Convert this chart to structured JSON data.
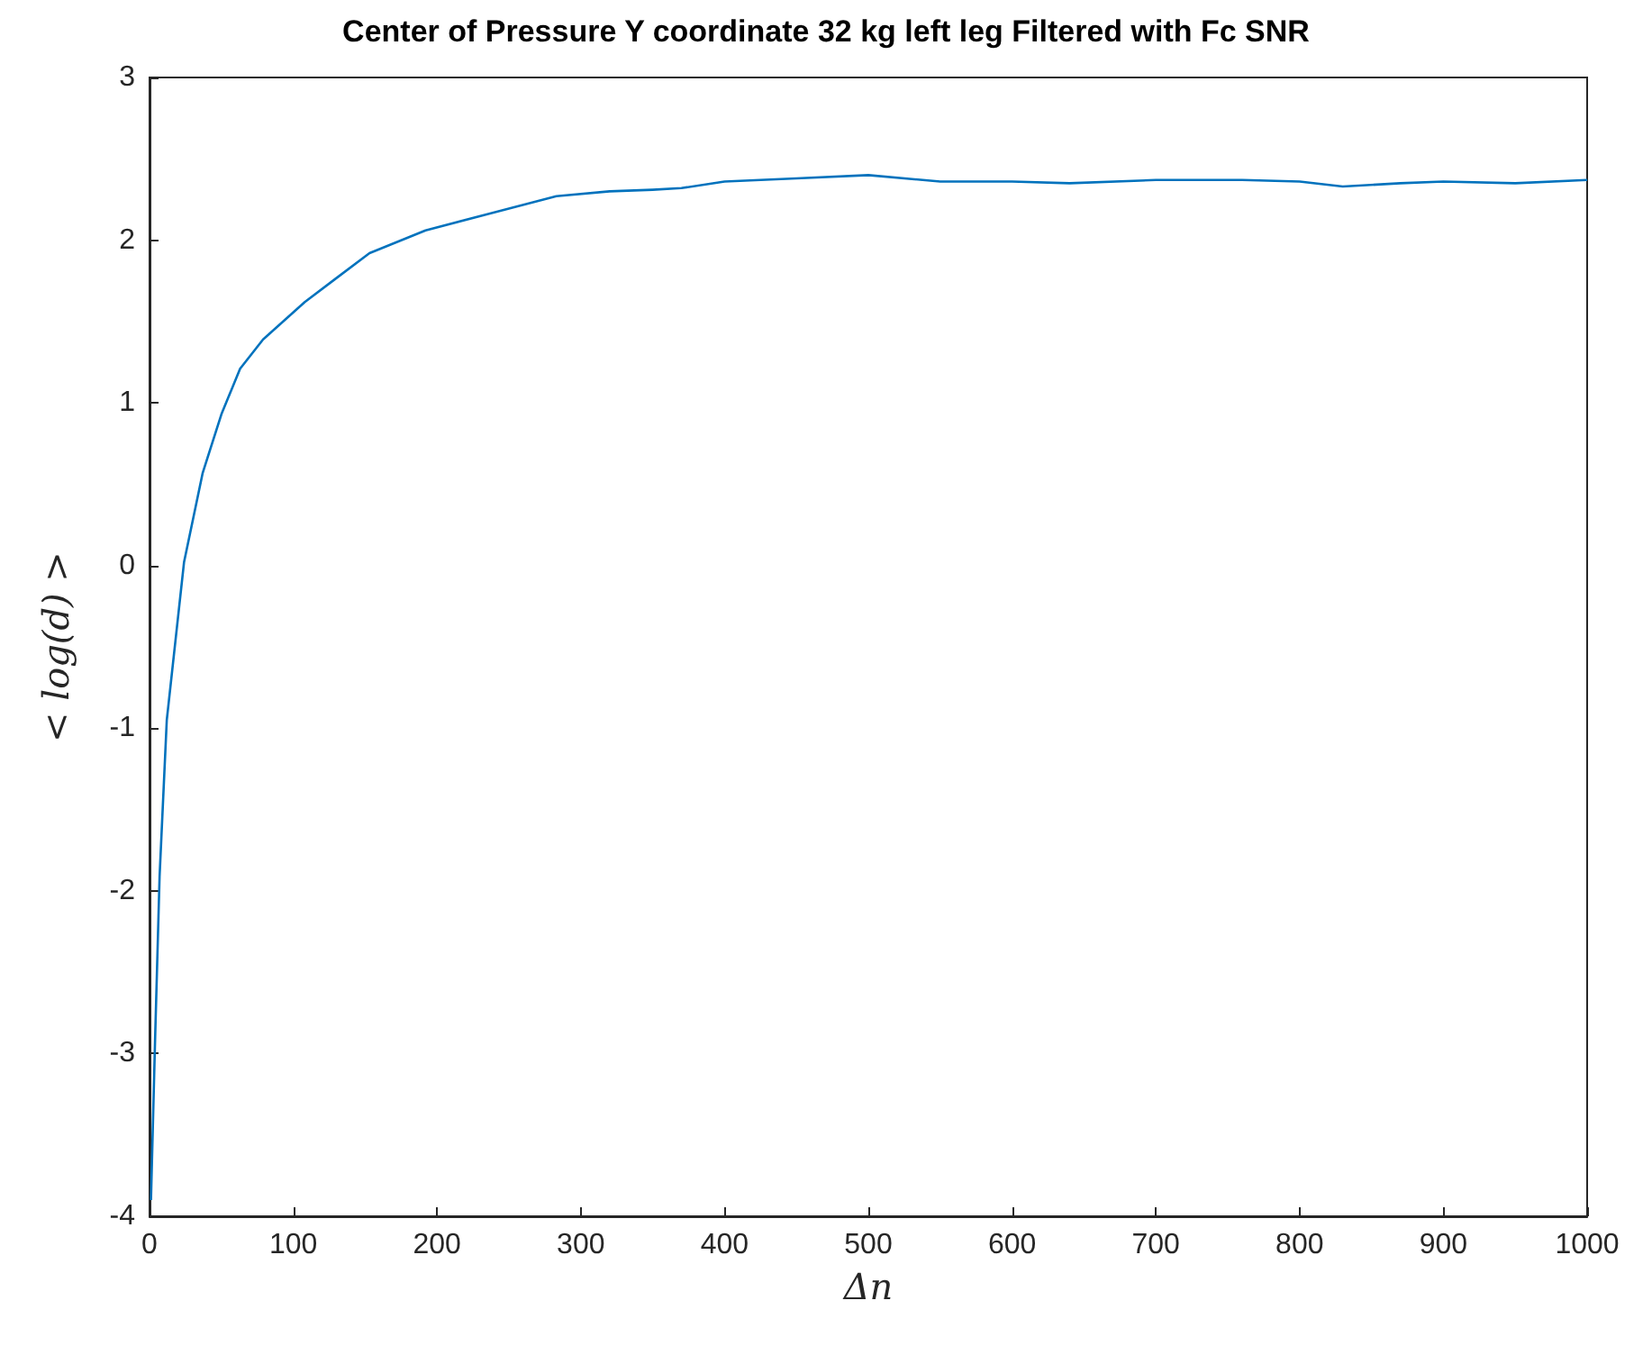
{
  "chart_data": {
    "type": "line",
    "title": "Center of Pressure Y coordinate 32 kg left leg Filtered with Fc SNR",
    "xlabel": "Δn",
    "ylabel": "< log(d) >",
    "x": [
      1,
      4,
      7,
      12,
      24,
      37,
      50,
      63,
      79,
      108,
      129,
      153,
      192,
      235,
      283,
      320,
      350,
      370,
      400,
      450,
      500,
      550,
      600,
      640,
      700,
      760,
      800,
      830,
      870,
      900,
      950,
      1000
    ],
    "series": [
      {
        "color": "#0072bd",
        "values": [
          -3.9,
          -2.87,
          -1.91,
          -0.95,
          0.02,
          0.57,
          0.93,
          1.21,
          1.39,
          1.62,
          1.76,
          1.92,
          2.06,
          2.16,
          2.27,
          2.3,
          2.31,
          2.32,
          2.36,
          2.38,
          2.4,
          2.36,
          2.36,
          2.35,
          2.37,
          2.37,
          2.36,
          2.33,
          2.35,
          2.36,
          2.35,
          2.37
        ]
      }
    ],
    "xlim": [
      0,
      1000
    ],
    "xticks": [
      0,
      100,
      200,
      300,
      400,
      500,
      600,
      700,
      800,
      900,
      1000
    ],
    "ylim": [
      -4,
      3
    ],
    "yticks": [
      -4,
      -3,
      -2,
      -1,
      0,
      1,
      2,
      3
    ],
    "grid": false,
    "marker": "none",
    "line_style": "solid"
  }
}
